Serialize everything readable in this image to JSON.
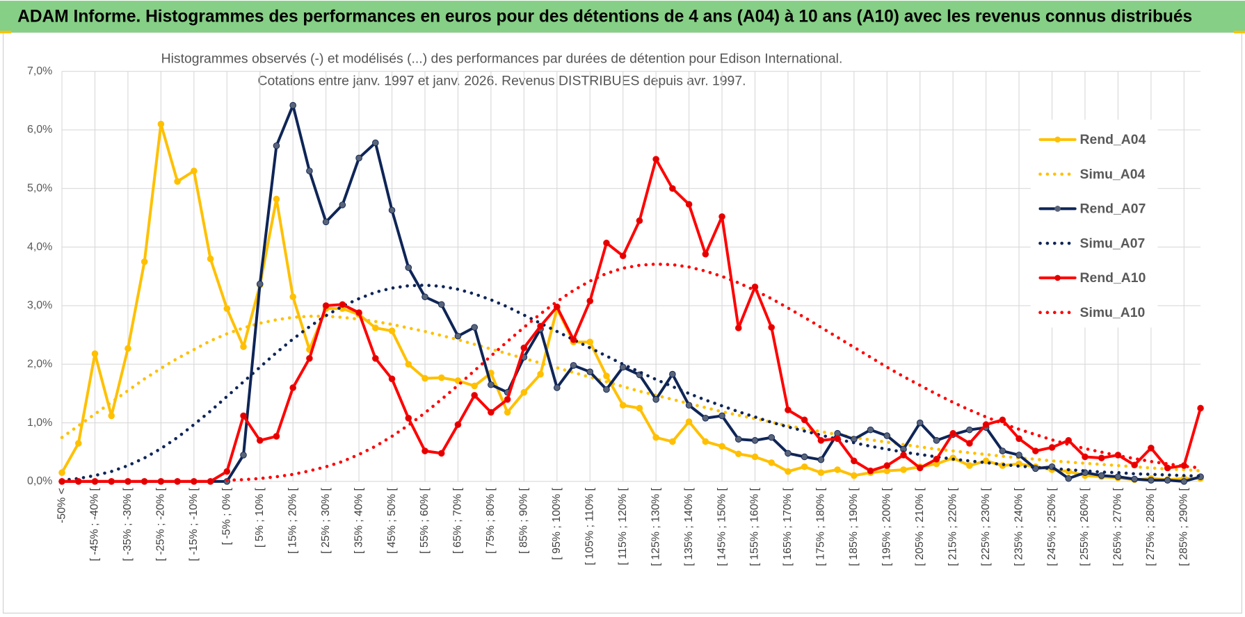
{
  "header": {
    "title": "ADAM Informe. Histogrammes des performances en euros pour des détentions de 4 ans (A04) à 10 ans (A10) avec les revenus connus distribués"
  },
  "chart_data": {
    "type": "line",
    "title": "Histogrammes observés (-) et modélisés (...) des performances par durées de détention pour Edison International.",
    "subtitle": "Cotations entre janv. 1997 et janv. 2026. Revenus DISTRIBUES depuis avr. 1997.",
    "categories": [
      "-50% <",
      null,
      "[ -45% ; -40% [",
      null,
      "[ -35% ; -30% [",
      null,
      "[ -25% ; -20% [",
      null,
      "[ -15% ; -10% [",
      null,
      "[ -5% ; 0% [",
      null,
      "[ 5% ; 10% [",
      null,
      "[ 15% ; 20% [",
      null,
      "[ 25% ; 30% [",
      null,
      "[ 35% ; 40% [",
      null,
      "[ 45% ; 50% [",
      null,
      "[ 55% ; 60% [",
      null,
      "[ 65% ; 70% [",
      null,
      "[ 75% ; 80% [",
      null,
      "[ 85% ; 90% [",
      null,
      "[ 95% ; 100% [",
      null,
      "[ 105% ; 110% [",
      null,
      "[ 115% ; 120% [",
      null,
      "[ 125% ; 130% [",
      null,
      "[ 135% ; 140% [",
      null,
      "[ 145% ; 150% [",
      null,
      "[ 155% ; 160% [",
      null,
      "[ 165% ; 170% [",
      null,
      "[ 175% ; 180% [",
      null,
      "[ 185% ; 190% [",
      null,
      "[ 195% ; 200% [",
      null,
      "[ 205% ; 210% [",
      null,
      "[ 215% ; 220% [",
      null,
      "[ 225% ; 230% [",
      null,
      "[ 235% ; 240% [",
      null,
      "[ 245% ; 250% [",
      null,
      "[ 255% ; 260% [",
      null,
      "[ 265% ; 270% [",
      null,
      "[ 275% ; 280% [",
      null,
      "[ 285% ; 290% [",
      null
    ],
    "series": [
      {
        "name": "Rend_A04",
        "color": "#ffc000",
        "style": "solid",
        "markers": true,
        "marker_color": "#ffc000",
        "values": [
          0.15,
          0.65,
          2.18,
          1.12,
          2.27,
          3.75,
          6.1,
          5.12,
          5.3,
          3.8,
          2.95,
          2.3,
          3.35,
          4.82,
          3.15,
          2.25,
          2.95,
          2.95,
          2.85,
          2.62,
          2.57,
          2.0,
          1.76,
          1.77,
          1.72,
          1.63,
          1.85,
          1.18,
          1.52,
          1.83,
          2.95,
          2.38,
          2.38,
          1.8,
          1.3,
          1.25,
          0.75,
          0.68,
          1.02,
          0.68,
          0.6,
          0.47,
          0.42,
          0.32,
          0.17,
          0.25,
          0.15,
          0.2,
          0.1,
          0.15,
          0.18,
          0.2,
          0.25,
          0.3,
          0.4,
          0.27,
          0.35,
          0.27,
          0.3,
          0.25,
          0.2,
          0.17,
          0.1,
          0.08,
          0.06,
          0.03,
          0.05,
          0.03,
          0.05,
          0.05
        ]
      },
      {
        "name": "Simu_A04",
        "color": "#ffc000",
        "style": "dotted",
        "markers": false,
        "values": [
          0.75,
          0.95,
          1.15,
          1.35,
          1.55,
          1.75,
          1.93,
          2.1,
          2.25,
          2.4,
          2.52,
          2.62,
          2.7,
          2.76,
          2.8,
          2.82,
          2.82,
          2.8,
          2.77,
          2.73,
          2.68,
          2.62,
          2.56,
          2.49,
          2.42,
          2.34,
          2.26,
          2.18,
          2.1,
          2.02,
          1.94,
          1.86,
          1.78,
          1.7,
          1.62,
          1.54,
          1.47,
          1.4,
          1.33,
          1.26,
          1.19,
          1.13,
          1.07,
          1.01,
          0.95,
          0.9,
          0.85,
          0.8,
          0.75,
          0.71,
          0.67,
          0.63,
          0.59,
          0.55,
          0.52,
          0.49,
          0.46,
          0.43,
          0.4,
          0.38,
          0.35,
          0.33,
          0.31,
          0.29,
          0.27,
          0.25,
          0.23,
          0.21,
          0.2,
          0.18
        ]
      },
      {
        "name": "Rend_A07",
        "color": "#0f2557",
        "style": "solid",
        "markers": true,
        "marker_color": "#5a6478",
        "values": [
          0,
          0,
          0,
          0,
          0,
          0,
          0,
          0,
          0,
          0,
          0,
          0.45,
          3.37,
          5.73,
          6.42,
          5.3,
          4.43,
          4.72,
          5.52,
          5.78,
          4.63,
          3.65,
          3.15,
          3.02,
          2.48,
          2.63,
          1.65,
          1.52,
          2.12,
          2.6,
          1.6,
          1.98,
          1.87,
          1.57,
          1.95,
          1.82,
          1.4,
          1.83,
          1.3,
          1.08,
          1.12,
          0.72,
          0.7,
          0.75,
          0.48,
          0.42,
          0.37,
          0.82,
          0.72,
          0.88,
          0.78,
          0.55,
          1.0,
          0.7,
          0.8,
          0.88,
          0.92,
          0.52,
          0.45,
          0.22,
          0.25,
          0.05,
          0.15,
          0.1,
          0.08,
          0.04,
          0.02,
          0.02,
          0,
          0.08
        ]
      },
      {
        "name": "Simu_A07",
        "color": "#0f2557",
        "style": "dotted",
        "markers": false,
        "values": [
          0.02,
          0.05,
          0.1,
          0.17,
          0.27,
          0.4,
          0.56,
          0.75,
          0.97,
          1.2,
          1.45,
          1.7,
          1.95,
          2.2,
          2.43,
          2.64,
          2.83,
          2.99,
          3.12,
          3.23,
          3.3,
          3.34,
          3.35,
          3.33,
          3.28,
          3.2,
          3.1,
          2.98,
          2.84,
          2.7,
          2.56,
          2.42,
          2.28,
          2.14,
          2.0,
          1.87,
          1.74,
          1.62,
          1.5,
          1.39,
          1.29,
          1.19,
          1.1,
          1.01,
          0.93,
          0.86,
          0.79,
          0.72,
          0.66,
          0.6,
          0.55,
          0.5,
          0.46,
          0.42,
          0.38,
          0.35,
          0.32,
          0.29,
          0.26,
          0.24,
          0.22,
          0.2,
          0.18,
          0.16,
          0.15,
          0.13,
          0.12,
          0.11,
          0.1,
          0.09
        ]
      },
      {
        "name": "Rend_A10",
        "color": "#ff0000",
        "style": "solid",
        "markers": true,
        "marker_color": "#e00000",
        "values": [
          0,
          0,
          0,
          0,
          0,
          0,
          0,
          0,
          0,
          0,
          0.17,
          1.12,
          0.7,
          0.77,
          1.6,
          2.1,
          3.0,
          3.02,
          2.88,
          2.1,
          1.75,
          1.08,
          0.52,
          0.48,
          0.97,
          1.47,
          1.18,
          1.4,
          2.28,
          2.65,
          2.98,
          2.42,
          3.08,
          4.07,
          3.85,
          4.45,
          5.5,
          5.0,
          4.73,
          3.88,
          4.52,
          2.62,
          3.32,
          2.63,
          1.22,
          1.05,
          0.7,
          0.73,
          0.35,
          0.18,
          0.27,
          0.45,
          0.23,
          0.38,
          0.82,
          0.65,
          0.97,
          1.05,
          0.73,
          0.52,
          0.58,
          0.7,
          0.42,
          0.4,
          0.45,
          0.28,
          0.57,
          0.23,
          0.27,
          1.25
        ]
      },
      {
        "name": "Simu_A10",
        "color": "#ff0000",
        "style": "dotted",
        "markers": false,
        "values": [
          null,
          null,
          null,
          null,
          null,
          null,
          null,
          null,
          null,
          null,
          0.02,
          0.03,
          0.05,
          0.08,
          0.12,
          0.18,
          0.25,
          0.34,
          0.46,
          0.6,
          0.77,
          0.96,
          1.17,
          1.4,
          1.64,
          1.89,
          2.14,
          2.39,
          2.63,
          2.86,
          3.07,
          3.26,
          3.42,
          3.55,
          3.64,
          3.69,
          3.71,
          3.7,
          3.66,
          3.59,
          3.5,
          3.39,
          3.26,
          3.12,
          2.96,
          2.8,
          2.63,
          2.46,
          2.29,
          2.12,
          1.95,
          1.79,
          1.64,
          1.49,
          1.35,
          1.22,
          1.1,
          0.99,
          0.89,
          0.8,
          0.71,
          0.63,
          0.56,
          0.5,
          0.44,
          0.39,
          0.34,
          0.3,
          0.26,
          0.23
        ]
      }
    ],
    "ylim": [
      0,
      7
    ],
    "yticks": [
      {
        "value": 0,
        "label": "0,0%"
      },
      {
        "value": 1,
        "label": "1,0%"
      },
      {
        "value": 2,
        "label": "2,0%"
      },
      {
        "value": 3,
        "label": "3,0%"
      },
      {
        "value": 4,
        "label": "4,0%"
      },
      {
        "value": 5,
        "label": "5,0%"
      },
      {
        "value": 6,
        "label": "6,0%"
      },
      {
        "value": 7,
        "label": "7,0%"
      }
    ],
    "grid": true,
    "legend": "right"
  }
}
